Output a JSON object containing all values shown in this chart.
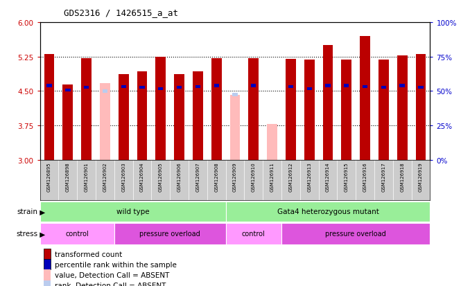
{
  "title": "GDS2316 / 1426515_a_at",
  "samples": [
    "GSM126895",
    "GSM126898",
    "GSM126901",
    "GSM126902",
    "GSM126903",
    "GSM126904",
    "GSM126905",
    "GSM126906",
    "GSM126907",
    "GSM126908",
    "GSM126909",
    "GSM126910",
    "GSM126911",
    "GSM126912",
    "GSM126913",
    "GSM126914",
    "GSM126915",
    "GSM126916",
    "GSM126917",
    "GSM126918",
    "GSM126919"
  ],
  "bar_values": [
    5.3,
    4.65,
    5.21,
    null,
    4.87,
    4.93,
    5.25,
    4.87,
    4.93,
    5.22,
    null,
    5.22,
    null,
    5.2,
    5.18,
    5.5,
    5.18,
    5.7,
    5.19,
    5.28,
    5.3
  ],
  "absent_values": [
    5.3,
    null,
    null,
    4.67,
    null,
    null,
    null,
    null,
    null,
    null,
    4.42,
    null,
    3.78,
    null,
    null,
    null,
    null,
    null,
    null,
    null,
    null
  ],
  "rank_values": [
    4.62,
    4.52,
    4.58,
    null,
    4.6,
    4.58,
    4.55,
    4.58,
    4.6,
    4.62,
    null,
    4.62,
    null,
    4.6,
    4.55,
    4.62,
    4.62,
    4.6,
    4.58,
    4.62,
    4.58
  ],
  "rank_absent_values": [
    null,
    null,
    null,
    4.5,
    null,
    null,
    null,
    null,
    null,
    null,
    4.42,
    null,
    null,
    null,
    null,
    null,
    null,
    null,
    null,
    null,
    null
  ],
  "ylim_left": [
    3,
    6
  ],
  "ylim_right": [
    0,
    100
  ],
  "yticks_left": [
    3,
    3.75,
    4.5,
    5.25,
    6
  ],
  "yticks_right": [
    0,
    25,
    50,
    75,
    100
  ],
  "strain_groups": [
    {
      "label": "wild type",
      "start": 0,
      "end": 10,
      "color": "#99EE99"
    },
    {
      "label": "Gata4 heterozygous mutant",
      "start": 10,
      "end": 21,
      "color": "#99EE99"
    }
  ],
  "stress_groups": [
    {
      "label": "control",
      "start": 0,
      "end": 4,
      "color": "#FF99FF"
    },
    {
      "label": "pressure overload",
      "start": 4,
      "end": 10,
      "color": "#DD55DD"
    },
    {
      "label": "control",
      "start": 10,
      "end": 13,
      "color": "#FF99FF"
    },
    {
      "label": "pressure overload",
      "start": 13,
      "end": 21,
      "color": "#DD55DD"
    }
  ],
  "bar_color": "#BB0000",
  "rank_color": "#0000BB",
  "absent_bar_color": "#FFBBBB",
  "absent_rank_color": "#BBCCEE",
  "background_color": "#FFFFFF",
  "plot_bg_color": "#FFFFFF",
  "tick_color_left": "#CC0000",
  "tick_color_right": "#0000CC",
  "xtick_bg_color": "#CCCCCC",
  "legend_items": [
    {
      "color": "#BB0000",
      "label": "transformed count"
    },
    {
      "color": "#0000BB",
      "label": "percentile rank within the sample"
    },
    {
      "color": "#FFBBBB",
      "label": "value, Detection Call = ABSENT"
    },
    {
      "color": "#BBCCEE",
      "label": "rank, Detection Call = ABSENT"
    }
  ]
}
